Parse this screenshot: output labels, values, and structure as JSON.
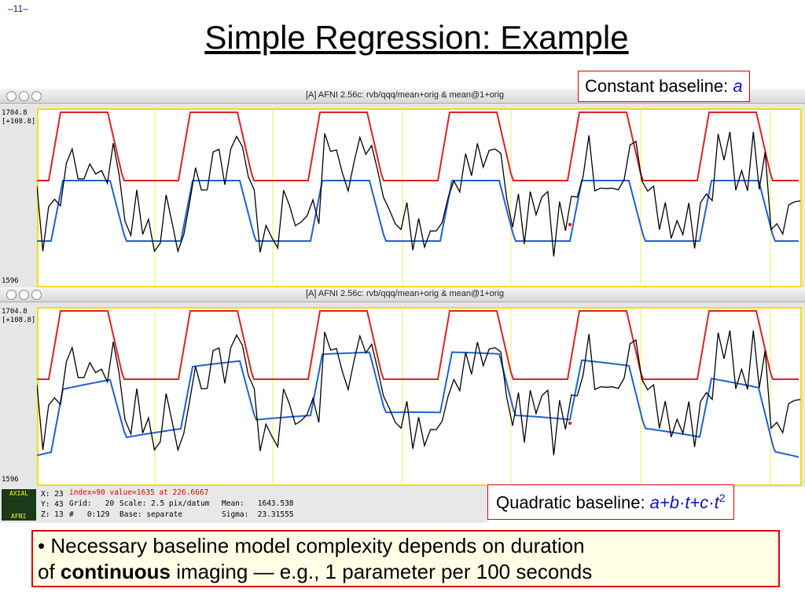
{
  "slide_number": "–11–",
  "title": "Simple Regression: Example",
  "windows": [
    {
      "title": "[A] AFNI 2.56c: rvb/qqq/mean+orig & mean@1+orig",
      "y_top": "1704.8",
      "y_range": "[+108.8]",
      "y_bottom": "1596"
    },
    {
      "title": "[A] AFNI 2.56c: rvb/qqq/mean+orig & mean@1+orig",
      "y_top": "1704.8",
      "y_range": "[+108.8]",
      "y_bottom": "1596"
    }
  ],
  "annotations": {
    "constant": {
      "text": "Constant baseline: ",
      "formula": "a"
    },
    "quadratic": {
      "text": "Quadratic baseline: ",
      "formula": "a+b·t+c·t",
      "superscript": "2"
    }
  },
  "status": {
    "x": "X: 23",
    "y": "Y: 43",
    "z": "Z: 13",
    "index": "index=90 value=1635 at 226.6667",
    "grid": "Grid:   20",
    "scale": "Scale: 2.5 pix/datum",
    "range": "#   0:129",
    "base": "Base: separate",
    "mean": "Mean:   1643.538",
    "sigma": "Sigma:  23.31555",
    "icon_top": "AXIAL",
    "icon_bottom": "AFNI"
  },
  "bullet": {
    "line1": "• Necessary baseline model complexity depends on duration",
    "line2_start": "of ",
    "line2_bold": "continuous",
    "line2_end": " imaging — e.g., 1 parameter per 100 seconds"
  }
}
